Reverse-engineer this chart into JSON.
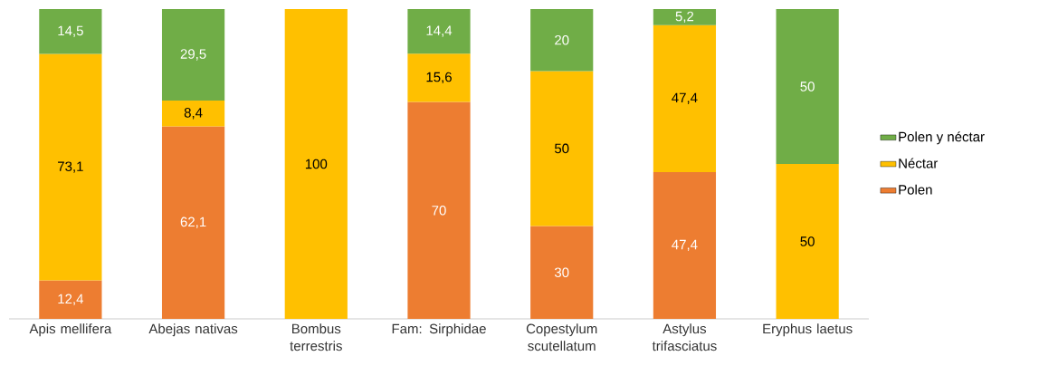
{
  "chart_data": {
    "type": "bar",
    "stacked": true,
    "legend": "right",
    "categories": [
      "Apis mellifera",
      "Abejas nativas",
      "Bombus terrestris",
      "Fam: Sirphidae",
      "Copestylum scutellatum",
      "Astylus trifasciatus",
      "Eryphus laetus"
    ],
    "series": [
      {
        "name": "Polen",
        "color": "#ed7d31",
        "values": [
          12.4,
          62.1,
          0,
          70,
          30,
          47.4,
          0
        ],
        "value_labels": [
          "12,4",
          "62,1",
          null,
          "70",
          "30",
          "47,4",
          null
        ]
      },
      {
        "name": "Néctar",
        "color": "#ffc000",
        "values": [
          73.1,
          8.4,
          100,
          15.6,
          50,
          47.4,
          50
        ],
        "value_labels": [
          "73,1",
          "8,4",
          "100",
          "15,6",
          "50",
          "47,4",
          "50"
        ]
      },
      {
        "name": "Polen y néctar",
        "color": "#70ad47",
        "values": [
          14.5,
          29.5,
          0,
          14.4,
          20,
          5.2,
          50
        ],
        "value_labels": [
          "14,5",
          "29,5",
          null,
          "14,4",
          "20",
          "5,2",
          "50"
        ]
      }
    ]
  }
}
